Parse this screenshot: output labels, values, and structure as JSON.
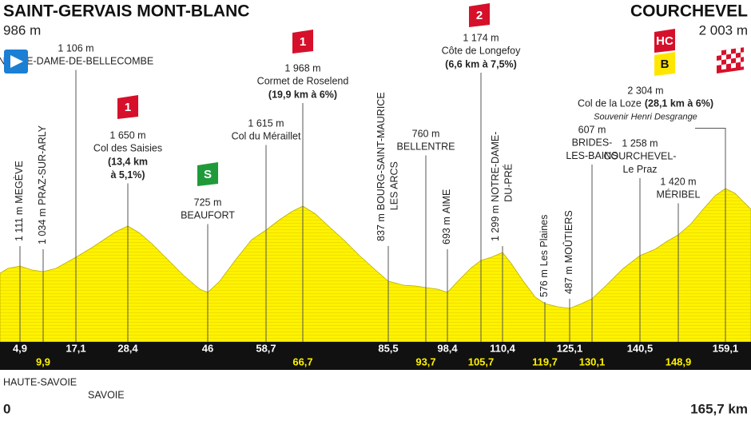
{
  "start": {
    "name": "SAINT-GERVAIS MONT-BLANC",
    "altitude": "986 m",
    "km": "0",
    "regions": [
      "HAUTE-SAVOIE",
      "SAVOIE"
    ]
  },
  "finish": {
    "name": "COURCHEVEL",
    "altitude": "2 003 m",
    "distance": "165,7 km"
  },
  "waypoints": [
    {
      "km": "4,9",
      "altitude": "1 111 m",
      "name": [
        "MEGÈVE"
      ]
    },
    {
      "km": "9,9",
      "altitude": "1 034 m",
      "name": [
        "PRAZ-SUR-ARLY"
      ]
    },
    {
      "km": "17,1",
      "altitude": "1 106 m",
      "name": [
        "NOTRE-DAME-DE-BELLECOMBE"
      ]
    },
    {
      "km": "28,4",
      "altitude": "1 650 m",
      "name": [
        "Col des Saisies"
      ],
      "detail": [
        "(13,4 km",
        "à 5,1%)"
      ],
      "badges": [
        "1"
      ]
    },
    {
      "km": "46",
      "altitude": "725 m",
      "name": [
        "BEAUFORT"
      ],
      "badges": [
        "S"
      ]
    },
    {
      "km": "58,7",
      "altitude": "1 615 m",
      "name": [
        "Col du Méraillet"
      ]
    },
    {
      "km": "66,7",
      "altitude": "1 968 m",
      "name": [
        "Cormet de Roselend"
      ],
      "detail": [
        "(19,9 km à 6%)"
      ],
      "badges": [
        "1"
      ]
    },
    {
      "km": "85,5",
      "altitude": "837 m",
      "name": [
        "BOURG-SAINT-MAURICE",
        "LES ARCS"
      ]
    },
    {
      "km": "93,7",
      "altitude": "760 m",
      "name": [
        "BELLENTRE"
      ]
    },
    {
      "km": "98,4",
      "altitude": "693 m",
      "name": [
        "AIME"
      ]
    },
    {
      "km": "105,7",
      "altitude": "1 174 m",
      "name": [
        "Côte de Longefoy"
      ],
      "detail": [
        "(6,6 km à 7,5%)"
      ],
      "badges": [
        "2"
      ]
    },
    {
      "km": "110,4",
      "altitude": "1 299 m",
      "name": [
        "NOTRE-DAME-",
        "DU-PRÉ"
      ]
    },
    {
      "km": "119,7",
      "altitude": "576 m",
      "name": [
        "Les Plaines"
      ]
    },
    {
      "km": "125,1",
      "altitude": "487 m",
      "name": [
        "MOÛTIERS"
      ]
    },
    {
      "km": "130,1",
      "altitude": "607 m",
      "name": [
        "BRIDES-",
        "LES-BAINS"
      ]
    },
    {
      "km": "140,5",
      "altitude": "1 258 m",
      "name": [
        "COURCHEVEL-",
        "Le Praz"
      ]
    },
    {
      "km": "148,9",
      "altitude": "1 420 m",
      "name": [
        "MÉRIBEL"
      ]
    },
    {
      "km": "159,1",
      "altitude": "2 304 m",
      "name": [
        "Col de la Loze"
      ],
      "detail": [
        "(28,1 km à 6%)"
      ],
      "note": "Souvenir Henri Desgrange",
      "badges": [
        "HC",
        "B"
      ]
    }
  ]
}
